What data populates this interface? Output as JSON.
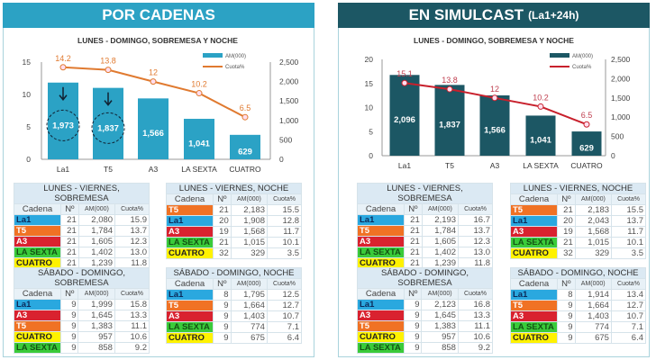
{
  "colors": {
    "La1": "#2aa8df",
    "T5": "#f07224",
    "A3": "#d9222f",
    "LA SEXTA": "#3acb3a",
    "CUATRO": "#fff200",
    "left_header": "#2ca2c4",
    "right_header": "#1c5764",
    "left_bar": "#2ba2c5",
    "left_line": "#e07a30",
    "right_bar": "#1c5764",
    "right_line": "#c8202c"
  },
  "left": {
    "title": "POR CADENAS",
    "tables": [
      {
        "title": "LUNES - VIERNES, SOBREMESA",
        "rows": [
          [
            "La1",
            "21",
            "2,080",
            "15.9"
          ],
          [
            "T5",
            "21",
            "1,784",
            "13.7"
          ],
          [
            "A3",
            "21",
            "1,605",
            "12.3"
          ],
          [
            "LA SEXTA",
            "21",
            "1,402",
            "13.0"
          ],
          [
            "CUATRO",
            "21",
            "1,239",
            "11.8"
          ]
        ]
      },
      {
        "title": "LUNES - VIERNES, NOCHE",
        "rows": [
          [
            "T5",
            "21",
            "2,183",
            "15.5"
          ],
          [
            "La1",
            "20",
            "1,908",
            "12.8"
          ],
          [
            "A3",
            "19",
            "1,568",
            "11.7"
          ],
          [
            "LA SEXTA",
            "21",
            "1,015",
            "10.1"
          ],
          [
            "CUATRO",
            "32",
            "329",
            "3.5"
          ]
        ]
      },
      {
        "title": "SÁBADO - DOMINGO, SOBREMESA",
        "rows": [
          [
            "La1",
            "9",
            "1,999",
            "15.8"
          ],
          [
            "A3",
            "9",
            "1,645",
            "13.3"
          ],
          [
            "T5",
            "9",
            "1,383",
            "11.1"
          ],
          [
            "CUATRO",
            "9",
            "957",
            "10.6"
          ],
          [
            "LA SEXTA",
            "9",
            "858",
            "9.2"
          ]
        ]
      },
      {
        "title": "SÁBADO - DOMINGO, NOCHE",
        "rows": [
          [
            "La1",
            "8",
            "1,795",
            "12.5"
          ],
          [
            "T5",
            "9",
            "1,664",
            "12.7"
          ],
          [
            "A3",
            "9",
            "1,403",
            "10.7"
          ],
          [
            "LA SEXTA",
            "9",
            "774",
            "7.1"
          ],
          [
            "CUATRO",
            "9",
            "675",
            "6.4"
          ]
        ]
      }
    ]
  },
  "right": {
    "title": "EN SIMULCAST",
    "title_suffix": "(La1+24h)",
    "tables": [
      {
        "title": "LUNES - VIERNES, SOBREMESA",
        "rows": [
          [
            "La1",
            "21",
            "2,193",
            "16.7"
          ],
          [
            "T5",
            "21",
            "1,784",
            "13.7"
          ],
          [
            "A3",
            "21",
            "1,605",
            "12.3"
          ],
          [
            "LA SEXTA",
            "21",
            "1,402",
            "13.0"
          ],
          [
            "CUATRO",
            "21",
            "1,239",
            "11.8"
          ]
        ]
      },
      {
        "title": "LUNES - VIERNES, NOCHE",
        "rows": [
          [
            "T5",
            "21",
            "2,183",
            "15.5"
          ],
          [
            "La1",
            "20",
            "2,043",
            "13.7"
          ],
          [
            "A3",
            "19",
            "1,568",
            "11.7"
          ],
          [
            "LA SEXTA",
            "21",
            "1,015",
            "10.1"
          ],
          [
            "CUATRO",
            "32",
            "329",
            "3.5"
          ]
        ]
      },
      {
        "title": "SÁBADO - DOMINGO, SOBREMESA",
        "rows": [
          [
            "La1",
            "9",
            "2,123",
            "16.8"
          ],
          [
            "A3",
            "9",
            "1,645",
            "13.3"
          ],
          [
            "T5",
            "9",
            "1,383",
            "11.1"
          ],
          [
            "CUATRO",
            "9",
            "957",
            "10.6"
          ],
          [
            "LA SEXTA",
            "9",
            "858",
            "9.2"
          ]
        ]
      },
      {
        "title": "SÁBADO - DOMINGO, NOCHE",
        "rows": [
          [
            "La1",
            "8",
            "1,914",
            "13.4"
          ],
          [
            "T5",
            "9",
            "1,664",
            "12.7"
          ],
          [
            "A3",
            "9",
            "1,403",
            "10.7"
          ],
          [
            "LA SEXTA",
            "9",
            "774",
            "7.1"
          ],
          [
            "CUATRO",
            "9",
            "675",
            "6.4"
          ]
        ]
      }
    ]
  },
  "table_headers": [
    "Cadena",
    "Nº",
    "AM(000)",
    "Cuota%"
  ],
  "chart_data": [
    {
      "type": "bar+line",
      "title": "LUNES - DOMINGO, SOBREMESA Y NOCHE",
      "categories": [
        "La1",
        "T5",
        "A3",
        "LA SEXTA",
        "CUATRO"
      ],
      "series": [
        {
          "name": "AM(000)",
          "type": "bar",
          "axis": "right",
          "values": [
            1973,
            1837,
            1566,
            1041,
            629
          ],
          "labels": [
            "1,973",
            "1,837",
            "1,566",
            "1,041",
            "629"
          ]
        },
        {
          "name": "Cuota%",
          "type": "line",
          "axis": "left",
          "values": [
            14.2,
            13.8,
            12,
            10.2,
            6.5
          ]
        }
      ],
      "ylim_left": [
        0,
        15
      ],
      "yticks_left": [
        "0",
        "5",
        "10",
        "15"
      ],
      "ylim_right": [
        0,
        2500
      ],
      "yticks_right": [
        "0",
        "500",
        "1,000",
        "1,500",
        "2,000",
        "2,500"
      ],
      "legend": "top-right",
      "highlighted": [
        "La1",
        "T5"
      ]
    },
    {
      "type": "bar+line",
      "title": "LUNES - DOMINGO, SOBREMESA Y NOCHE",
      "categories": [
        "La1",
        "T5",
        "A3",
        "LA SEXTA",
        "CUATRO"
      ],
      "series": [
        {
          "name": "AM(000)",
          "type": "bar",
          "axis": "right",
          "values": [
            2096,
            1837,
            1566,
            1041,
            629
          ],
          "labels": [
            "2,096",
            "1,837",
            "1,566",
            "1,041",
            "629"
          ]
        },
        {
          "name": "Cuota%",
          "type": "line",
          "axis": "left",
          "values": [
            15.1,
            13.8,
            12,
            10.2,
            6.5
          ]
        }
      ],
      "ylim_left": [
        0,
        20
      ],
      "yticks_left": [
        "0",
        "5",
        "10",
        "15",
        "20"
      ],
      "ylim_right": [
        0,
        2500
      ],
      "yticks_right": [
        "0",
        "500",
        "1,000",
        "1,500",
        "2,000",
        "2,500"
      ],
      "legend": "top-right"
    }
  ]
}
